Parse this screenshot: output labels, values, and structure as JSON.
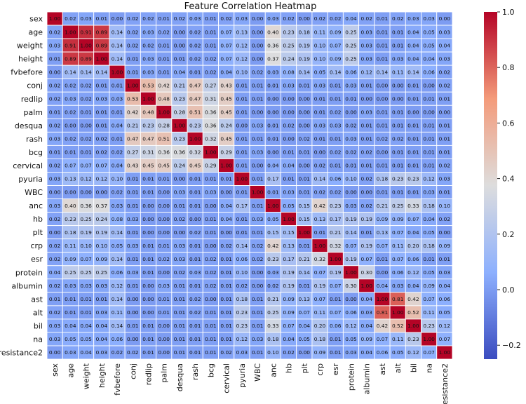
{
  "chart_data": {
    "type": "heatmap",
    "title": "Feature Correlation Heatmap",
    "labels": [
      "sex",
      "age",
      "weight",
      "height",
      "fvbefore",
      "conj",
      "redlip",
      "palm",
      "desqua",
      "rash",
      "bcg",
      "cervical",
      "pyuria",
      "WBC",
      "anc",
      "hb",
      "plt",
      "crp",
      "esr",
      "protein",
      "albumin",
      "ast",
      "alt",
      "bil",
      "na",
      "resistance2"
    ],
    "colormap": "coolwarm",
    "vmin": -0.25,
    "vmax": 1.0,
    "colorbar_ticks": [
      -0.2,
      0.0,
      0.2,
      0.4,
      0.6,
      0.8,
      1.0
    ],
    "colorbar_tick_labels": [
      "−0.2",
      "0.0",
      "0.2",
      "0.4",
      "0.6",
      "0.8",
      "1.0"
    ],
    "values": [
      [
        1.0,
        0.02,
        0.03,
        0.01,
        0.0,
        0.02,
        0.02,
        0.01,
        0.02,
        0.03,
        0.01,
        0.02,
        0.03,
        0.0,
        0.03,
        0.02,
        0.0,
        0.02,
        0.02,
        0.04,
        0.02,
        0.01,
        0.02,
        0.03,
        0.03,
        0.0
      ],
      [
        0.02,
        1.0,
        0.91,
        0.89,
        0.14,
        0.02,
        0.03,
        0.02,
        0.0,
        0.02,
        0.01,
        0.07,
        0.13,
        0.0,
        0.4,
        0.23,
        0.18,
        0.11,
        0.09,
        0.25,
        0.03,
        0.01,
        0.01,
        0.04,
        0.05,
        0.03
      ],
      [
        0.03,
        0.91,
        1.0,
        0.89,
        0.14,
        0.02,
        0.02,
        0.01,
        0.0,
        0.02,
        0.01,
        0.07,
        0.12,
        0.0,
        0.36,
        0.25,
        0.19,
        0.1,
        0.07,
        0.25,
        0.03,
        0.01,
        0.01,
        0.04,
        0.05,
        0.04
      ],
      [
        0.01,
        0.89,
        0.89,
        1.0,
        0.14,
        0.01,
        0.03,
        0.01,
        0.01,
        0.02,
        0.02,
        0.07,
        0.12,
        0.0,
        0.37,
        0.24,
        0.19,
        0.1,
        0.09,
        0.25,
        0.03,
        0.01,
        0.03,
        0.04,
        0.04,
        0.03
      ],
      [
        0.0,
        0.14,
        0.14,
        0.14,
        1.0,
        0.01,
        0.03,
        0.01,
        0.04,
        0.01,
        0.02,
        0.04,
        0.1,
        0.02,
        0.03,
        0.08,
        0.14,
        0.05,
        0.14,
        0.06,
        0.12,
        0.14,
        0.11,
        0.14,
        0.06,
        0.02
      ],
      [
        0.02,
        0.02,
        0.02,
        0.01,
        0.01,
        1.0,
        0.53,
        0.42,
        0.21,
        0.47,
        0.27,
        0.43,
        0.01,
        0.01,
        0.01,
        0.03,
        0.01,
        0.03,
        0.01,
        0.03,
        0.01,
        0.0,
        0.0,
        0.01,
        0.0,
        0.02
      ],
      [
        0.02,
        0.03,
        0.02,
        0.03,
        0.03,
        0.53,
        1.0,
        0.48,
        0.23,
        0.47,
        0.31,
        0.45,
        0.01,
        0.01,
        0.0,
        0.0,
        0.0,
        0.01,
        0.01,
        0.01,
        0.0,
        0.0,
        0.0,
        0.01,
        0.01,
        0.01
      ],
      [
        0.01,
        0.02,
        0.01,
        0.01,
        0.01,
        0.42,
        0.48,
        1.0,
        0.28,
        0.51,
        0.36,
        0.45,
        0.01,
        0.0,
        0.0,
        0.0,
        0.0,
        0.01,
        0.02,
        0.0,
        0.03,
        0.01,
        0.01,
        0.0,
        0.0,
        0.0
      ],
      [
        0.02,
        0.0,
        0.0,
        0.01,
        0.04,
        0.21,
        0.23,
        0.28,
        1.0,
        0.23,
        0.36,
        0.24,
        0.0,
        0.03,
        0.01,
        0.02,
        0.0,
        0.03,
        0.03,
        0.02,
        0.01,
        0.01,
        0.01,
        0.01,
        0.01,
        0.01
      ],
      [
        0.03,
        0.02,
        0.02,
        0.02,
        0.01,
        0.47,
        0.47,
        0.51,
        0.23,
        1.0,
        0.32,
        0.45,
        0.01,
        0.01,
        0.01,
        0.0,
        0.02,
        0.01,
        0.01,
        0.03,
        0.01,
        0.02,
        0.02,
        0.01,
        0.01,
        0.01
      ],
      [
        0.01,
        0.01,
        0.01,
        0.02,
        0.02,
        0.27,
        0.31,
        0.36,
        0.36,
        0.32,
        1.0,
        0.29,
        0.01,
        0.03,
        0.0,
        0.01,
        0.01,
        0.0,
        0.02,
        0.02,
        0.02,
        0.0,
        0.01,
        0.01,
        0.01,
        0.01
      ],
      [
        0.02,
        0.07,
        0.07,
        0.07,
        0.04,
        0.43,
        0.45,
        0.45,
        0.24,
        0.45,
        0.29,
        1.0,
        0.01,
        0.0,
        0.04,
        0.04,
        0.0,
        0.02,
        0.01,
        0.01,
        0.01,
        0.01,
        0.01,
        0.01,
        0.01,
        0.02
      ],
      [
        0.03,
        0.13,
        0.12,
        0.12,
        0.1,
        0.01,
        0.01,
        0.01,
        0.0,
        0.01,
        0.01,
        0.01,
        1.0,
        0.01,
        0.17,
        0.01,
        0.01,
        0.14,
        0.06,
        0.1,
        0.02,
        0.18,
        0.23,
        0.23,
        0.12,
        0.03
      ],
      [
        0.0,
        0.0,
        0.0,
        0.0,
        0.02,
        0.01,
        0.01,
        0.0,
        0.03,
        0.01,
        0.03,
        0.0,
        0.01,
        1.0,
        0.01,
        0.03,
        0.01,
        0.02,
        0.02,
        0.0,
        0.0,
        0.01,
        0.01,
        0.01,
        0.03,
        0.01
      ],
      [
        0.03,
        0.4,
        0.36,
        0.37,
        0.03,
        0.01,
        0.0,
        0.0,
        0.01,
        0.01,
        0.0,
        0.04,
        0.17,
        0.01,
        1.0,
        0.05,
        0.15,
        0.42,
        0.23,
        0.03,
        0.02,
        0.21,
        0.25,
        0.33,
        0.18,
        0.1
      ],
      [
        0.02,
        0.23,
        0.25,
        0.24,
        0.08,
        0.03,
        0.0,
        0.0,
        0.02,
        0.0,
        0.01,
        0.04,
        0.01,
        0.03,
        0.05,
        1.0,
        0.15,
        0.13,
        0.17,
        0.19,
        0.19,
        0.09,
        0.09,
        0.07,
        0.04,
        0.02
      ],
      [
        0.0,
        0.18,
        0.19,
        0.19,
        0.14,
        0.01,
        0.0,
        0.0,
        0.0,
        0.02,
        0.01,
        0.0,
        0.01,
        0.01,
        0.15,
        0.15,
        1.0,
        0.01,
        0.21,
        0.14,
        0.01,
        0.13,
        0.07,
        0.04,
        0.05,
        0.0
      ],
      [
        0.02,
        0.11,
        0.1,
        0.1,
        0.05,
        0.03,
        0.01,
        0.01,
        0.03,
        0.01,
        0.0,
        0.02,
        0.14,
        0.02,
        0.42,
        0.13,
        0.01,
        1.0,
        0.32,
        0.07,
        0.19,
        0.07,
        0.11,
        0.2,
        0.18,
        0.09
      ],
      [
        0.02,
        0.09,
        0.07,
        0.09,
        0.14,
        0.01,
        0.01,
        0.02,
        0.03,
        0.01,
        0.02,
        0.01,
        0.06,
        0.02,
        0.23,
        0.17,
        0.21,
        0.32,
        1.0,
        0.19,
        0.07,
        0.01,
        0.07,
        0.06,
        0.01,
        0.01
      ],
      [
        0.04,
        0.25,
        0.25,
        0.25,
        0.06,
        0.03,
        0.01,
        0.0,
        0.02,
        0.03,
        0.02,
        0.01,
        0.1,
        0.0,
        0.03,
        0.19,
        0.14,
        0.07,
        0.19,
        1.0,
        0.3,
        0.0,
        0.06,
        0.12,
        0.05,
        0.03
      ],
      [
        0.02,
        0.03,
        0.03,
        0.03,
        0.12,
        0.01,
        0.0,
        0.03,
        0.01,
        0.01,
        0.02,
        0.01,
        0.02,
        0.0,
        0.02,
        0.19,
        0.01,
        0.19,
        0.07,
        0.3,
        1.0,
        0.04,
        0.03,
        0.04,
        0.09,
        0.04
      ],
      [
        0.01,
        0.01,
        0.01,
        0.01,
        0.14,
        0.0,
        0.0,
        0.01,
        0.01,
        0.02,
        0.0,
        0.01,
        0.18,
        0.01,
        0.21,
        0.09,
        0.13,
        0.07,
        0.01,
        0.0,
        0.04,
        1.0,
        0.81,
        0.42,
        0.07,
        0.06
      ],
      [
        0.02,
        0.01,
        0.01,
        0.03,
        0.11,
        0.0,
        0.0,
        0.01,
        0.01,
        0.02,
        0.01,
        0.01,
        0.23,
        0.01,
        0.25,
        0.09,
        0.07,
        0.11,
        0.07,
        0.06,
        0.03,
        0.81,
        1.0,
        0.52,
        0.11,
        0.05
      ],
      [
        0.03,
        0.04,
        0.04,
        0.04,
        0.14,
        0.01,
        0.01,
        0.0,
        0.01,
        0.01,
        0.01,
        0.01,
        0.23,
        0.01,
        0.33,
        0.07,
        0.04,
        0.2,
        0.06,
        0.12,
        0.04,
        0.42,
        0.52,
        1.0,
        0.23,
        0.12
      ],
      [
        0.03,
        0.05,
        0.05,
        0.04,
        0.06,
        0.0,
        0.01,
        0.0,
        0.01,
        0.01,
        0.01,
        0.01,
        0.12,
        0.03,
        0.18,
        0.04,
        0.05,
        0.18,
        0.01,
        0.05,
        0.09,
        0.07,
        0.11,
        0.23,
        1.0,
        0.07
      ],
      [
        0.0,
        0.03,
        0.04,
        0.03,
        0.02,
        0.02,
        0.01,
        0.0,
        0.01,
        0.01,
        0.01,
        0.02,
        0.03,
        0.01,
        0.1,
        0.02,
        0.0,
        0.09,
        0.01,
        0.03,
        0.04,
        0.06,
        0.05,
        0.12,
        0.07,
        1.0
      ]
    ]
  }
}
